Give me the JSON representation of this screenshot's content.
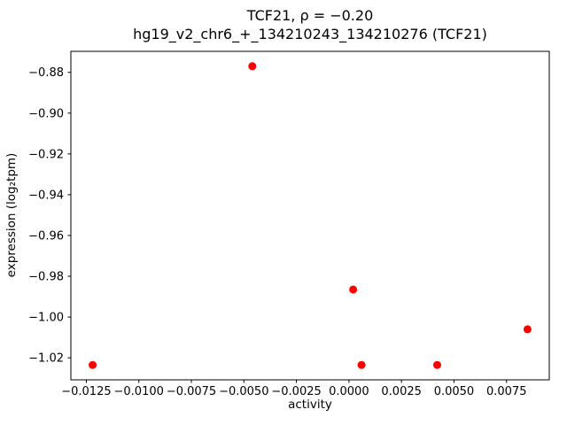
{
  "figure": {
    "title_line1": "TCF21, ρ = −0.20",
    "title_line2": "hg19_v2_chr6_+_134210243_134210276 (TCF21)"
  },
  "chart_data": {
    "type": "scatter",
    "title": "TCF21, ρ = −0.20",
    "subtitle": "hg19_v2_chr6_+_134210243_134210276 (TCF21)",
    "xlabel": "activity",
    "ylabel": "expression (log₂tpm)",
    "legend": "none",
    "grid": false,
    "marker_color": "#ff0000",
    "marker_radius": 4.5,
    "points": [
      {
        "x": -0.0122,
        "y": -1.0235
      },
      {
        "x": -0.0046,
        "y": -0.877
      },
      {
        "x": 0.0002,
        "y": -0.9865
      },
      {
        "x": 0.0006,
        "y": -1.0235
      },
      {
        "x": 0.0042,
        "y": -1.0235
      },
      {
        "x": 0.0085,
        "y": -1.006
      }
    ],
    "xlim": [
      -0.013235,
      0.009535
    ],
    "ylim": [
      -1.0308,
      -0.8697
    ],
    "xticks": [
      -0.0125,
      -0.01,
      -0.0075,
      -0.005,
      -0.0025,
      0,
      0.0025,
      0.005,
      0.0075
    ],
    "yticks": [
      -0.88,
      -0.9,
      -0.92,
      -0.94,
      -0.96,
      -0.98,
      -1.0,
      -1.02
    ],
    "xtick_labels": [
      "−0.0125",
      "−0.0100",
      "−0.0075",
      "−0.0050",
      "−0.0025",
      "0.0000",
      "0.0025",
      "0.0050",
      "0.0075"
    ],
    "ytick_labels": [
      "−0.88",
      "−0.90",
      "−0.92",
      "−0.94",
      "−0.96",
      "−0.98",
      "−1.00",
      "−1.02"
    ]
  }
}
